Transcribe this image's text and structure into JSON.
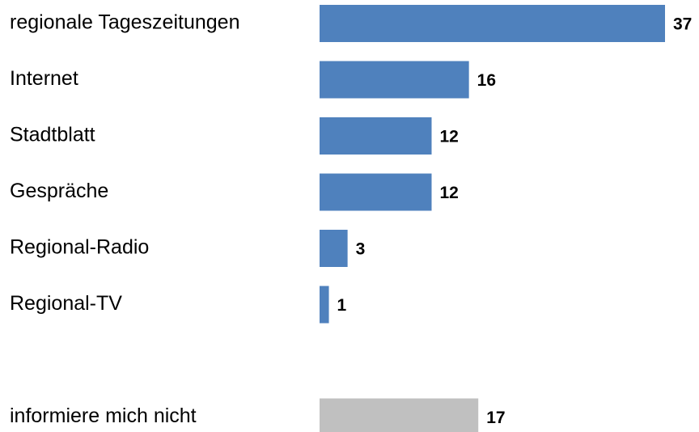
{
  "chart_data": {
    "type": "bar",
    "orientation": "horizontal",
    "categories": [
      "regionale Tageszeitungen",
      "Internet",
      "Stadtblatt",
      "Gespräche",
      "Regional-Radio",
      "Regional-TV",
      null,
      "informiere mich nicht"
    ],
    "values": [
      37,
      16,
      12,
      12,
      3,
      1,
      null,
      17
    ],
    "colors": [
      "#4f81bd",
      "#4f81bd",
      "#4f81bd",
      "#4f81bd",
      "#4f81bd",
      "#4f81bd",
      null,
      "#c0c0c0"
    ]
  }
}
